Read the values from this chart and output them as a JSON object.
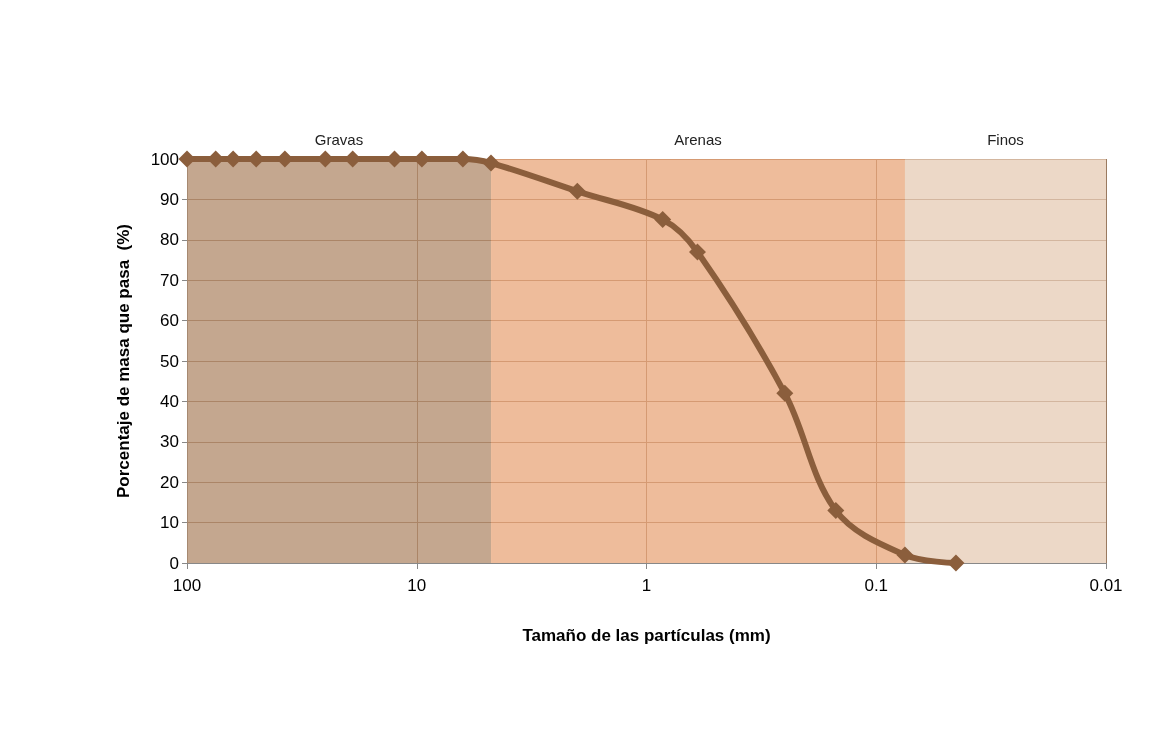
{
  "chart_data": {
    "type": "line",
    "xlabel": "Tamaño de las partículas (mm)",
    "ylabel": "Porcentaje de masa que pasa  (%)",
    "x": [
      100,
      75,
      63,
      50,
      37.5,
      25,
      19,
      12.5,
      9.5,
      6.3,
      4.75,
      2,
      0.85,
      0.6,
      0.25,
      0.15,
      0.075,
      0.045
    ],
    "series": [
      {
        "color": "#8b5e3c",
        "values": [
          100,
          100,
          100,
          100,
          100,
          100,
          100,
          100,
          100,
          100,
          99,
          92,
          85,
          77,
          42,
          13,
          2,
          0
        ]
      }
    ],
    "log": "x",
    "xlim": [
      100,
      0.01
    ],
    "xticks": [
      100,
      10,
      1,
      0.1,
      0.01
    ],
    "ylim": [
      0,
      100
    ],
    "yticks": [
      0,
      10,
      20,
      30,
      40,
      50,
      60,
      70,
      80,
      90,
      100
    ],
    "bands": [
      {
        "axis": "x",
        "from": 100,
        "to": 4.75,
        "label": "Gravas",
        "color": "#b08a6a"
      },
      {
        "axis": "x",
        "from": 4.75,
        "to": 0.075,
        "label": "Arenas",
        "color": "#e8a57a"
      },
      {
        "axis": "x",
        "from": 0.075,
        "to": 0.01,
        "label": "Finos",
        "color": "#e6cbb4"
      }
    ],
    "grid": true,
    "marker": "diamond",
    "line_style": "solid"
  }
}
